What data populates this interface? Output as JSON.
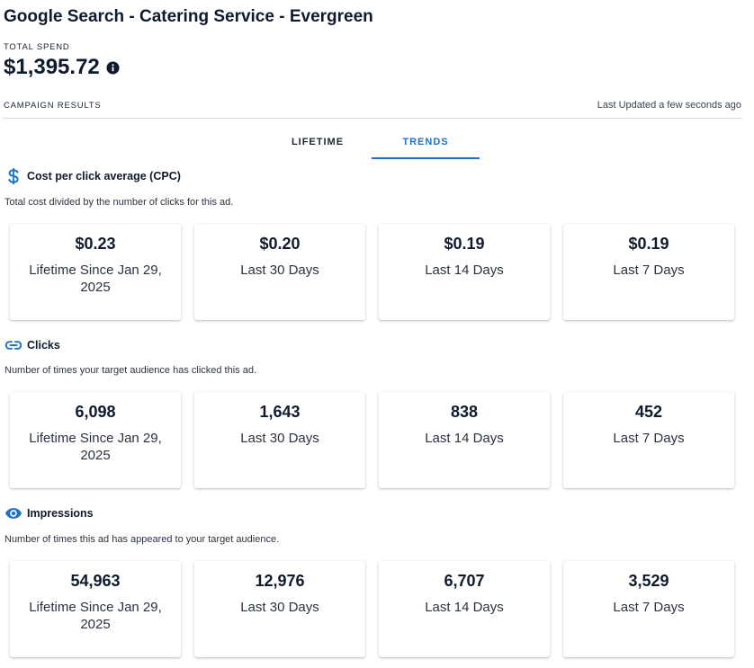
{
  "header": {
    "title": "Google Search - Catering Service - Evergreen",
    "spend_label": "TOTAL SPEND",
    "spend_value": "$1,395.72",
    "spend_info_icon": "info-icon",
    "results_label": "CAMPAIGN RESULTS",
    "last_updated": "Last Updated a few seconds ago"
  },
  "tabs": [
    {
      "label": "LIFETIME",
      "active": false
    },
    {
      "label": "TRENDS",
      "active": true
    }
  ],
  "accent_color": "#1a73c9",
  "sections": [
    {
      "icon": "dollar-icon",
      "title": "Cost per click average (CPC)",
      "description": "Total cost divided by the number of clicks for this ad.",
      "cards": [
        {
          "value": "$0.23",
          "label": "Lifetime Since Jan 29, 2025"
        },
        {
          "value": "$0.20",
          "label": "Last 30 Days"
        },
        {
          "value": "$0.19",
          "label": "Last 14 Days"
        },
        {
          "value": "$0.19",
          "label": "Last 7 Days"
        }
      ]
    },
    {
      "icon": "link-icon",
      "title": "Clicks",
      "description": "Number of times your target audience has clicked this ad.",
      "cards": [
        {
          "value": "6,098",
          "label": "Lifetime Since Jan 29, 2025"
        },
        {
          "value": "1,643",
          "label": "Last 30 Days"
        },
        {
          "value": "838",
          "label": "Last 14 Days"
        },
        {
          "value": "452",
          "label": "Last 7 Days"
        }
      ]
    },
    {
      "icon": "eye-icon",
      "title": "Impressions",
      "description": "Number of times this ad has appeared to your target audience.",
      "cards": [
        {
          "value": "54,963",
          "label": "Lifetime Since Jan 29, 2025"
        },
        {
          "value": "12,976",
          "label": "Last 30 Days"
        },
        {
          "value": "6,707",
          "label": "Last 14 Days"
        },
        {
          "value": "3,529",
          "label": "Last 7 Days"
        }
      ]
    }
  ]
}
